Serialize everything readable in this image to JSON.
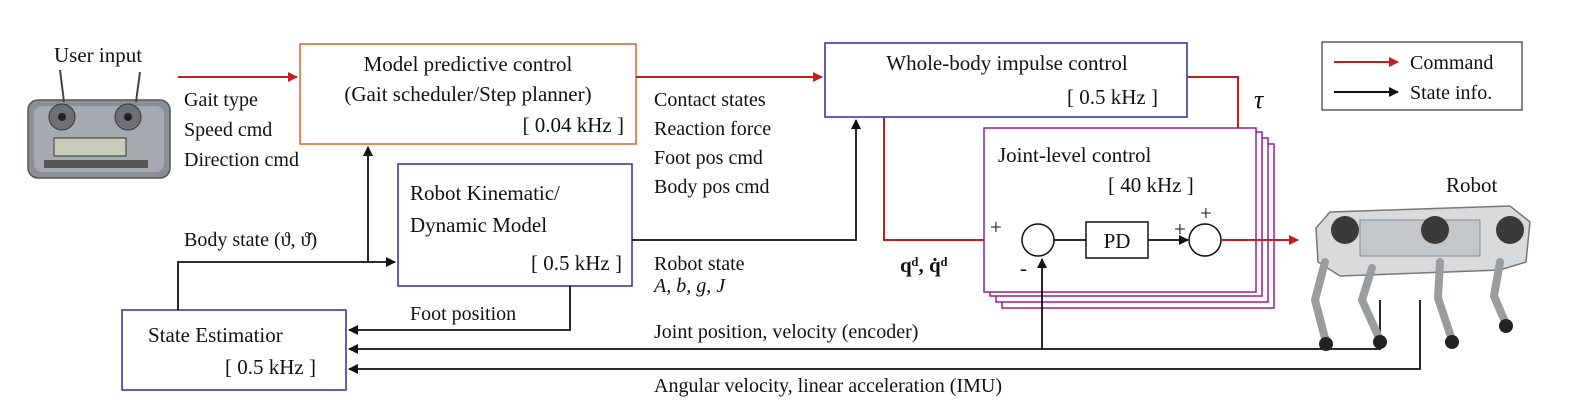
{
  "colors": {
    "command": "#c21e1e",
    "state": "#111111",
    "mpc_border": "#e0602a",
    "blue_border": "#2a2aa8",
    "joint_border": "#9a1a9a"
  },
  "icons": {
    "remote": "rc-transmitter-icon",
    "robot": "quadruped-robot-icon"
  },
  "user_input": {
    "label": "User input",
    "cmds": [
      "Gait type",
      "Speed cmd",
      "Direction cmd"
    ]
  },
  "mpc": {
    "title1": "Model predictive control",
    "title2": "(Gait scheduler/Step planner)",
    "rate": "[ 0.04 kHz ]"
  },
  "wbic": {
    "title": "Whole-body impulse control",
    "rate": "[ 0.5 kHz ]"
  },
  "model": {
    "title1": "Robot Kinematic/",
    "title2": "Dynamic Model",
    "rate": "[ 0.5 kHz ]"
  },
  "estimator": {
    "title": "State Estimatior",
    "rate": "[ 0.5 kHz ]"
  },
  "joint": {
    "title": "Joint-level control",
    "rate": "[ 40 kHz ]",
    "pd": "PD"
  },
  "mpc_outputs": [
    "Contact states",
    "Reaction force",
    "Foot pos cmd",
    "Body pos cmd"
  ],
  "labels": {
    "body_state": "Body state (ϑ, ϑ̇)",
    "robot_state": "Robot state",
    "robot_state_vars": "A, b, g, J",
    "foot_position": "Foot position",
    "joint_feedback": "Joint position, velocity (encoder)",
    "imu_feedback": "Angular velocity, linear acceleration (IMU)",
    "desired": "qᵈ, q̇ᵈ",
    "tau": "τ",
    "robot": "Robot",
    "plus1": "+",
    "minus": "-",
    "plus2": "+",
    "plus3": "+"
  },
  "legend": {
    "command": "Command",
    "state": "State info."
  }
}
